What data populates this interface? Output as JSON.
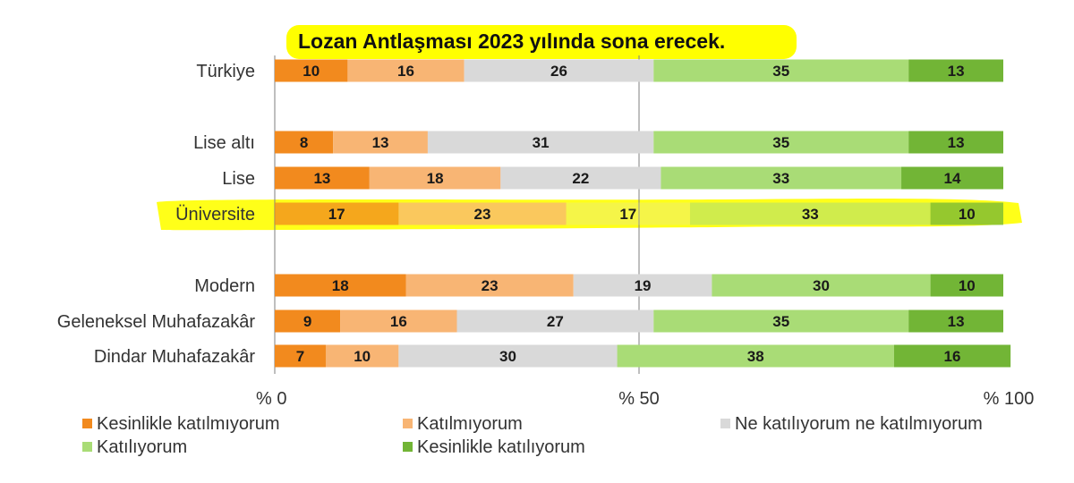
{
  "chart_data": {
    "type": "bar",
    "orientation": "horizontal",
    "stacked": true,
    "title": "Lozan Antlaşması 2023 yılında sona erecek.",
    "xlim": [
      0,
      100
    ],
    "xticks": [
      {
        "value": 0,
        "label": "% 0"
      },
      {
        "value": 50,
        "label": "% 50"
      },
      {
        "value": 100,
        "label": "% 100"
      }
    ],
    "categories": [
      "Türkiye",
      "Lise altı",
      "Lise",
      "Üniversite",
      "Modern",
      "Geleneksel Muhafazakâr",
      "Dindar Muhafazakâr"
    ],
    "series": [
      {
        "name": "Kesinlikle katılmıyorum",
        "color": "#f28a1e",
        "values": [
          10,
          8,
          13,
          17,
          18,
          9,
          7
        ]
      },
      {
        "name": "Katılmıyorum",
        "color": "#f8b574",
        "values": [
          16,
          13,
          18,
          23,
          23,
          16,
          10
        ]
      },
      {
        "name": "Ne katılıyorum ne katılmıyorum",
        "color": "#d9d9d9",
        "values": [
          26,
          31,
          22,
          17,
          19,
          27,
          30
        ]
      },
      {
        "name": "Katılıyorum",
        "color": "#a9dc76",
        "values": [
          35,
          35,
          33,
          33,
          30,
          35,
          38
        ]
      },
      {
        "name": "Kesinlikle katılıyorum",
        "color": "#72b536",
        "values": [
          13,
          13,
          14,
          10,
          10,
          13,
          16
        ]
      }
    ],
    "legend_position": "bottom",
    "highlight_color": "#ffff00",
    "highlighted": [
      "title",
      "Üniversite"
    ]
  }
}
